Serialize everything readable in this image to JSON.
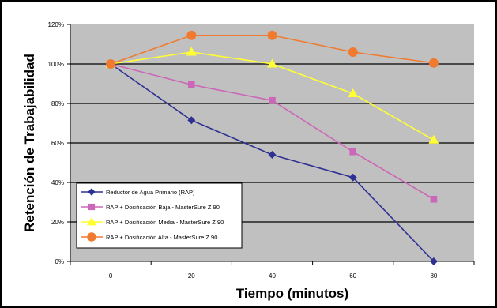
{
  "chart_data": {
    "type": "line",
    "title": "",
    "xlabel": "Tiempo (minutos)",
    "ylabel": "Retención de Trabajabilidad",
    "x": [
      0,
      20,
      40,
      60,
      80
    ],
    "x_tick_labels": [
      "0",
      "20",
      "40",
      "60",
      "80"
    ],
    "xlim": [
      -10,
      90
    ],
    "ylim": [
      0,
      120
    ],
    "y_ticks": [
      0,
      20,
      40,
      60,
      80,
      100,
      120
    ],
    "y_tick_labels": [
      "0%",
      "20%",
      "40%",
      "60%",
      "80%",
      "100%",
      "120%"
    ],
    "grid": "horizontal",
    "plot_background": "#c0c0c0",
    "legend_position": "bottom-left",
    "series": [
      {
        "name": "Reductor de Agua Primario (RAP)",
        "color": "#2e3192",
        "marker": "diamond",
        "values": [
          100,
          71.5,
          54,
          42.5,
          0
        ]
      },
      {
        "name": "RAP + Dosificación Baja - MasterSure Z 90",
        "color": "#cc66b8",
        "marker": "square",
        "values": [
          100,
          89.5,
          81.5,
          55.5,
          31.5
        ]
      },
      {
        "name": "RAP + Dosificación Media - MasterSure Z 90",
        "color": "#ffff33",
        "marker": "triangle",
        "values": [
          100,
          106,
          100,
          85,
          61.5
        ]
      },
      {
        "name": "RAP + Dosificación Alta - MasterSure Z 90",
        "color": "#f07b30",
        "marker": "circle",
        "values": [
          100,
          114.5,
          114.5,
          106,
          100.5
        ]
      }
    ]
  }
}
